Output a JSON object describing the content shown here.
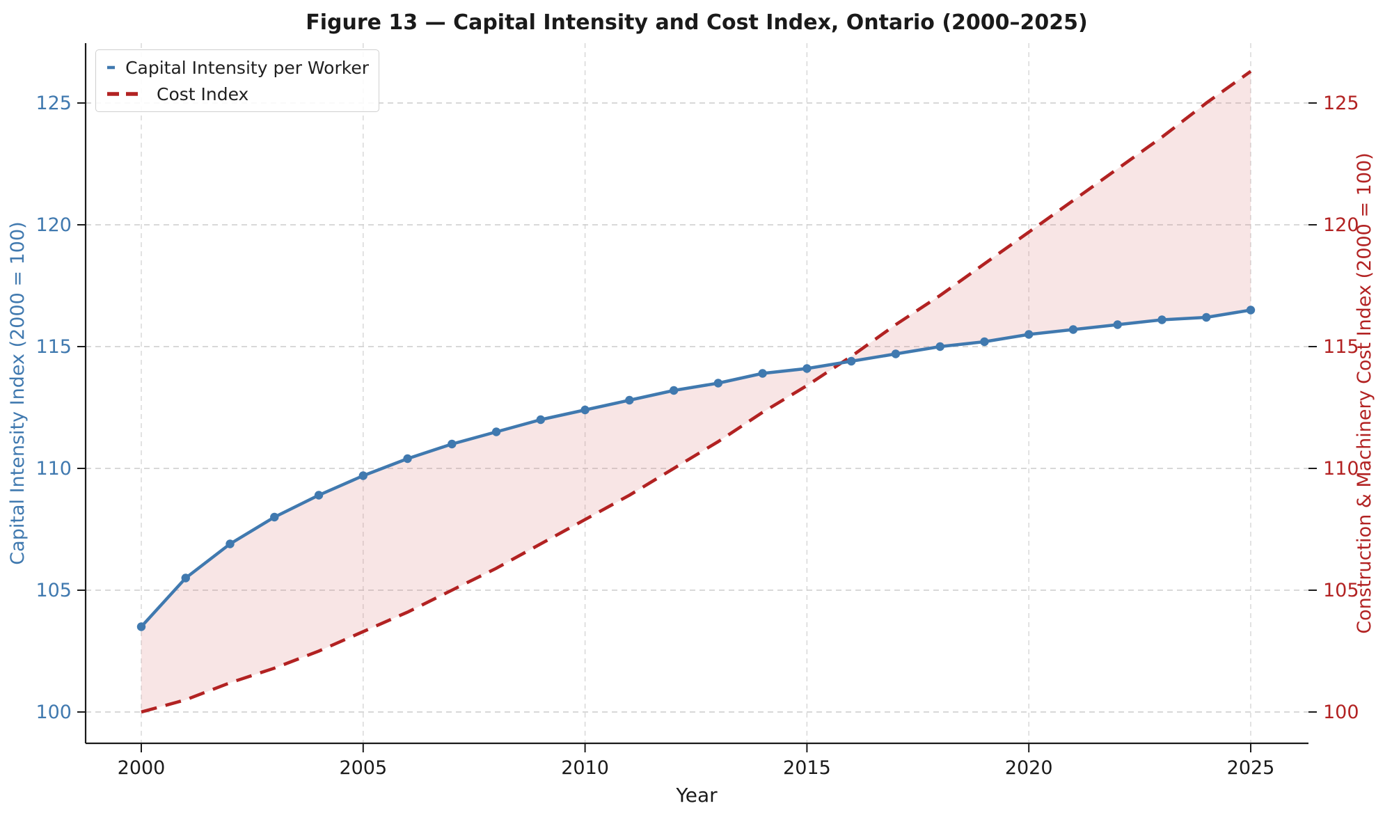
{
  "title": "Figure 13 — Capital Intensity and Cost Index, Ontario (2000–2025)",
  "colors": {
    "blue": "#4079AF",
    "red": "#B22222",
    "grid": "#CBCBCB",
    "grid_vertical": "#D6D6D6",
    "fill_pink": "#DE7E7E",
    "spine": "#1a1a1a",
    "tick_black": "#1a1a1a",
    "legend_border": "#cfcfcf",
    "title_color": "#1a1a1a"
  },
  "legend": {
    "items": [
      {
        "label": "Capital Intensity per Worker",
        "marker": "solid-line-with-dot"
      },
      {
        "label": "Cost Index",
        "marker": "dashed-line"
      }
    ]
  },
  "axes": {
    "left": {
      "label": "Capital Intensity Index (2000 = 100)",
      "tick_labels": [
        "100",
        "105",
        "110",
        "115",
        "120",
        "125"
      ],
      "tick_values": [
        100,
        105,
        110,
        115,
        120,
        125
      ]
    },
    "right": {
      "label": "Construction & Machinery Cost Index (2000 = 100)",
      "tick_labels": [
        "100",
        "105",
        "110",
        "115",
        "120",
        "125"
      ],
      "tick_values": [
        100,
        105,
        110,
        115,
        120,
        125
      ]
    },
    "x": {
      "label": "Year",
      "tick_labels": [
        "2000",
        "2005",
        "2010",
        "2015",
        "2020",
        "2025"
      ],
      "tick_values": [
        2000,
        2005,
        2010,
        2015,
        2020,
        2025
      ]
    }
  },
  "chart_data": {
    "type": "line",
    "title": "Figure 13 — Capital Intensity and Cost Index, Ontario (2000–2025)",
    "xlabel": "Year",
    "ylabel_left": "Capital Intensity Index (2000 = 100)",
    "ylabel_right": "Construction & Machinery Cost Index (2000 = 100)",
    "x": [
      2000,
      2001,
      2002,
      2003,
      2004,
      2005,
      2006,
      2007,
      2008,
      2009,
      2010,
      2011,
      2012,
      2013,
      2014,
      2015,
      2016,
      2017,
      2018,
      2019,
      2020,
      2021,
      2022,
      2023,
      2024,
      2025
    ],
    "series": [
      {
        "name": "Capital Intensity per Worker",
        "axis": "left",
        "style": "solid",
        "marker": "circle",
        "values": [
          103.5,
          105.5,
          106.9,
          108.0,
          108.9,
          109.7,
          110.4,
          111.0,
          111.5,
          112.0,
          112.4,
          112.8,
          113.2,
          113.5,
          113.9,
          114.1,
          114.4,
          114.7,
          115.0,
          115.2,
          115.5,
          115.7,
          115.9,
          116.1,
          116.2,
          116.5
        ]
      },
      {
        "name": "Cost Index",
        "axis": "right",
        "style": "dashed",
        "marker": "none",
        "values": [
          100.0,
          100.5,
          101.2,
          101.8,
          102.5,
          103.3,
          104.1,
          105.0,
          105.9,
          106.9,
          107.9,
          108.9,
          110.0,
          111.1,
          112.3,
          113.4,
          114.6,
          115.9,
          117.1,
          118.4,
          119.7,
          121.0,
          122.3,
          123.6,
          125.0,
          126.3
        ]
      }
    ],
    "fill_between_series": true,
    "ylim": [
      98.7,
      127.5
    ],
    "xlim": [
      1998.75,
      2026.3
    ],
    "grid": true,
    "grid_style": "dashed",
    "legend_position": "upper left"
  }
}
